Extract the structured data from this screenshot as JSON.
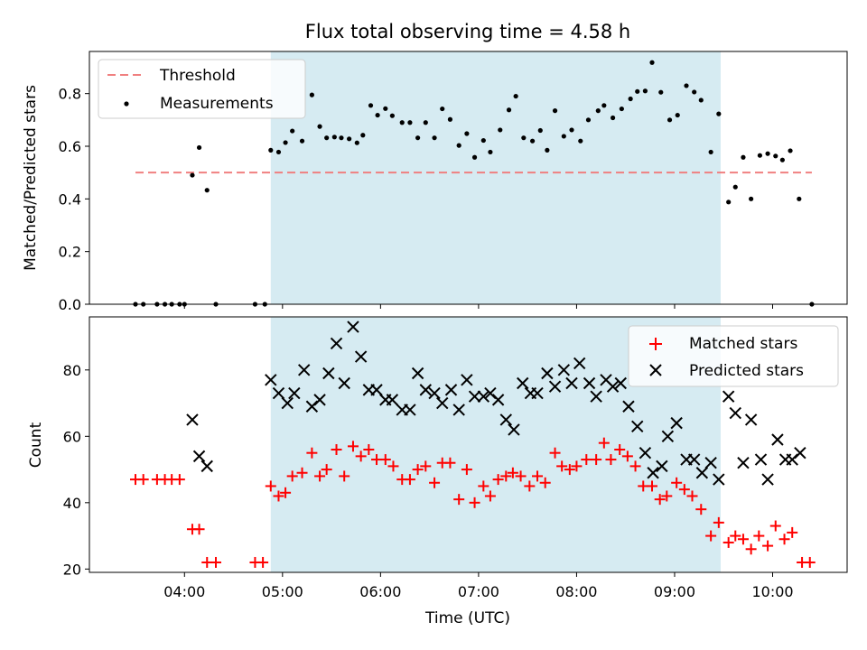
{
  "chart_data": [
    {
      "type": "scatter",
      "title": "Flux total observing time = 4.58 h",
      "xlabel": "",
      "ylabel": "Matched/Predicted stars",
      "x_unit": "hours UTC",
      "xlim": [
        3.03,
        10.76
      ],
      "ylim": [
        0.0,
        0.96
      ],
      "yticks": [
        0.0,
        0.2,
        0.4,
        0.6,
        0.8
      ],
      "ytick_labels": [
        "0.0",
        "0.2",
        "0.4",
        "0.6",
        "0.8"
      ],
      "highlight_span": [
        4.88,
        9.47
      ],
      "highlight_color": "#add8e6",
      "legend": {
        "position": "top-left",
        "entries": [
          {
            "label": "Threshold",
            "style": "dashed-line",
            "color": "#f08080"
          },
          {
            "label": "Measurements",
            "style": "dot",
            "color": "#000000"
          }
        ]
      },
      "threshold": {
        "name": "Threshold",
        "value": 0.5,
        "x_range": [
          3.5,
          10.4
        ],
        "color": "#f08080"
      },
      "series": [
        {
          "name": "Measurements",
          "marker": "dot",
          "color": "#000000",
          "points": [
            [
              3.5,
              0
            ],
            [
              3.58,
              0
            ],
            [
              3.72,
              0
            ],
            [
              3.8,
              0
            ],
            [
              3.87,
              0
            ],
            [
              3.95,
              0
            ],
            [
              4.0,
              0
            ],
            [
              4.08,
              0.49
            ],
            [
              4.15,
              0.595
            ],
            [
              4.23,
              0.433
            ],
            [
              4.32,
              0
            ],
            [
              4.72,
              0
            ],
            [
              4.82,
              0
            ],
            [
              4.88,
              0.585
            ],
            [
              4.96,
              0.578
            ],
            [
              5.03,
              0.614
            ],
            [
              5.1,
              0.658
            ],
            [
              5.2,
              0.62
            ],
            [
              5.3,
              0.795
            ],
            [
              5.38,
              0.675
            ],
            [
              5.45,
              0.632
            ],
            [
              5.53,
              0.635
            ],
            [
              5.6,
              0.632
            ],
            [
              5.68,
              0.628
            ],
            [
              5.76,
              0.613
            ],
            [
              5.82,
              0.642
            ],
            [
              5.9,
              0.755
            ],
            [
              5.97,
              0.718
            ],
            [
              6.05,
              0.743
            ],
            [
              6.12,
              0.716
            ],
            [
              6.22,
              0.69
            ],
            [
              6.3,
              0.69
            ],
            [
              6.38,
              0.632
            ],
            [
              6.46,
              0.69
            ],
            [
              6.55,
              0.632
            ],
            [
              6.63,
              0.742
            ],
            [
              6.71,
              0.702
            ],
            [
              6.8,
              0.603
            ],
            [
              6.88,
              0.648
            ],
            [
              6.96,
              0.558
            ],
            [
              7.05,
              0.622
            ],
            [
              7.12,
              0.578
            ],
            [
              7.22,
              0.662
            ],
            [
              7.31,
              0.738
            ],
            [
              7.38,
              0.79
            ],
            [
              7.46,
              0.632
            ],
            [
              7.55,
              0.62
            ],
            [
              7.63,
              0.66
            ],
            [
              7.7,
              0.585
            ],
            [
              7.78,
              0.735
            ],
            [
              7.87,
              0.638
            ],
            [
              7.95,
              0.662
            ],
            [
              8.04,
              0.62
            ],
            [
              8.12,
              0.7
            ],
            [
              8.22,
              0.735
            ],
            [
              8.28,
              0.755
            ],
            [
              8.37,
              0.708
            ],
            [
              8.46,
              0.742
            ],
            [
              8.55,
              0.78
            ],
            [
              8.62,
              0.808
            ],
            [
              8.7,
              0.81
            ],
            [
              8.77,
              0.918
            ],
            [
              8.86,
              0.805
            ],
            [
              8.95,
              0.7
            ],
            [
              9.03,
              0.718
            ],
            [
              9.12,
              0.83
            ],
            [
              9.2,
              0.806
            ],
            [
              9.27,
              0.775
            ],
            [
              9.37,
              0.578
            ],
            [
              9.45,
              0.723
            ],
            [
              9.55,
              0.388
            ],
            [
              9.62,
              0.445
            ],
            [
              9.7,
              0.558
            ],
            [
              9.78,
              0.4
            ],
            [
              9.87,
              0.565
            ],
            [
              9.95,
              0.572
            ],
            [
              10.03,
              0.563
            ],
            [
              10.1,
              0.548
            ],
            [
              10.18,
              0.583
            ],
            [
              10.27,
              0.4
            ],
            [
              10.4,
              0
            ]
          ]
        }
      ]
    },
    {
      "type": "scatter",
      "title": "",
      "xlabel": "Time (UTC)",
      "ylabel": "Count",
      "x_unit": "hours UTC",
      "xlim": [
        3.03,
        10.76
      ],
      "ylim": [
        19,
        96
      ],
      "yticks": [
        20,
        40,
        60,
        80
      ],
      "ytick_labels": [
        "20",
        "40",
        "60",
        "80"
      ],
      "xticks": [
        4,
        5,
        6,
        7,
        8,
        9,
        10
      ],
      "xtick_labels": [
        "04:00",
        "05:00",
        "06:00",
        "07:00",
        "08:00",
        "09:00",
        "10:00"
      ],
      "highlight_span": [
        4.88,
        9.47
      ],
      "highlight_color": "#add8e6",
      "legend": {
        "position": "top-right",
        "entries": [
          {
            "label": "Matched stars",
            "style": "plus",
            "color": "#ff0000"
          },
          {
            "label": "Predicted stars",
            "style": "x",
            "color": "#000000"
          }
        ]
      },
      "series": [
        {
          "name": "Matched stars",
          "marker": "plus",
          "color": "#ff0000",
          "points": [
            [
              3.5,
              47
            ],
            [
              3.58,
              47
            ],
            [
              3.72,
              47
            ],
            [
              3.8,
              47
            ],
            [
              3.87,
              47
            ],
            [
              3.95,
              47
            ],
            [
              4.08,
              32
            ],
            [
              4.15,
              32
            ],
            [
              4.23,
              22
            ],
            [
              4.32,
              22
            ],
            [
              4.72,
              22
            ],
            [
              4.8,
              22
            ],
            [
              4.88,
              45
            ],
            [
              4.96,
              42
            ],
            [
              5.03,
              43
            ],
            [
              5.1,
              48
            ],
            [
              5.2,
              49
            ],
            [
              5.3,
              55
            ],
            [
              5.38,
              48
            ],
            [
              5.45,
              50
            ],
            [
              5.55,
              56
            ],
            [
              5.63,
              48
            ],
            [
              5.72,
              57
            ],
            [
              5.8,
              54
            ],
            [
              5.88,
              56
            ],
            [
              5.96,
              53
            ],
            [
              6.05,
              53
            ],
            [
              6.13,
              51
            ],
            [
              6.22,
              47
            ],
            [
              6.3,
              47
            ],
            [
              6.38,
              50
            ],
            [
              6.46,
              51
            ],
            [
              6.55,
              46
            ],
            [
              6.63,
              52
            ],
            [
              6.71,
              52
            ],
            [
              6.8,
              41
            ],
            [
              6.88,
              50
            ],
            [
              6.96,
              40
            ],
            [
              7.05,
              45
            ],
            [
              7.12,
              42
            ],
            [
              7.2,
              47
            ],
            [
              7.28,
              48
            ],
            [
              7.35,
              49
            ],
            [
              7.43,
              48
            ],
            [
              7.52,
              45
            ],
            [
              7.6,
              48
            ],
            [
              7.68,
              46
            ],
            [
              7.78,
              55
            ],
            [
              7.85,
              51
            ],
            [
              7.93,
              50
            ],
            [
              8.0,
              51
            ],
            [
              8.1,
              53
            ],
            [
              8.2,
              53
            ],
            [
              8.28,
              58
            ],
            [
              8.35,
              53
            ],
            [
              8.44,
              56
            ],
            [
              8.52,
              54
            ],
            [
              8.6,
              51
            ],
            [
              8.68,
              45
            ],
            [
              8.77,
              45
            ],
            [
              8.85,
              41
            ],
            [
              8.92,
              42
            ],
            [
              9.02,
              46
            ],
            [
              9.1,
              44
            ],
            [
              9.18,
              42
            ],
            [
              9.27,
              38
            ],
            [
              9.37,
              30
            ],
            [
              9.45,
              34
            ],
            [
              9.55,
              28
            ],
            [
              9.62,
              30
            ],
            [
              9.7,
              29
            ],
            [
              9.78,
              26
            ],
            [
              9.86,
              30
            ],
            [
              9.95,
              27
            ],
            [
              10.03,
              33
            ],
            [
              10.12,
              29
            ],
            [
              10.2,
              31
            ],
            [
              10.3,
              22
            ],
            [
              10.38,
              22
            ]
          ]
        },
        {
          "name": "Predicted stars",
          "marker": "x",
          "color": "#000000",
          "points": [
            [
              4.08,
              65
            ],
            [
              4.15,
              54
            ],
            [
              4.23,
              51
            ],
            [
              4.88,
              77
            ],
            [
              4.96,
              73
            ],
            [
              5.05,
              70
            ],
            [
              5.12,
              73
            ],
            [
              5.22,
              80
            ],
            [
              5.3,
              69
            ],
            [
              5.38,
              71
            ],
            [
              5.47,
              79
            ],
            [
              5.55,
              88
            ],
            [
              5.63,
              76
            ],
            [
              5.72,
              93
            ],
            [
              5.8,
              84
            ],
            [
              5.88,
              74
            ],
            [
              5.96,
              74
            ],
            [
              6.05,
              71
            ],
            [
              6.12,
              71
            ],
            [
              6.22,
              68
            ],
            [
              6.3,
              68
            ],
            [
              6.38,
              79
            ],
            [
              6.46,
              74
            ],
            [
              6.55,
              73
            ],
            [
              6.63,
              70
            ],
            [
              6.72,
              74
            ],
            [
              6.8,
              68
            ],
            [
              6.88,
              77
            ],
            [
              6.96,
              72
            ],
            [
              7.05,
              72
            ],
            [
              7.12,
              73
            ],
            [
              7.2,
              71
            ],
            [
              7.28,
              65
            ],
            [
              7.36,
              62
            ],
            [
              7.45,
              76
            ],
            [
              7.53,
              73
            ],
            [
              7.6,
              73
            ],
            [
              7.7,
              79
            ],
            [
              7.78,
              75
            ],
            [
              7.87,
              80
            ],
            [
              7.95,
              76
            ],
            [
              8.03,
              82
            ],
            [
              8.13,
              76
            ],
            [
              8.2,
              72
            ],
            [
              8.3,
              77
            ],
            [
              8.37,
              75
            ],
            [
              8.45,
              76
            ],
            [
              8.53,
              69
            ],
            [
              8.62,
              63
            ],
            [
              8.7,
              55
            ],
            [
              8.78,
              49
            ],
            [
              8.87,
              51
            ],
            [
              8.93,
              60
            ],
            [
              9.02,
              64
            ],
            [
              9.12,
              53
            ],
            [
              9.2,
              53
            ],
            [
              9.28,
              49
            ],
            [
              9.37,
              52
            ],
            [
              9.45,
              47
            ],
            [
              9.55,
              72
            ],
            [
              9.62,
              67
            ],
            [
              9.7,
              52
            ],
            [
              9.78,
              65
            ],
            [
              9.88,
              53
            ],
            [
              9.95,
              47
            ],
            [
              10.05,
              59
            ],
            [
              10.13,
              53
            ],
            [
              10.2,
              53
            ],
            [
              10.28,
              55
            ]
          ]
        }
      ]
    }
  ]
}
